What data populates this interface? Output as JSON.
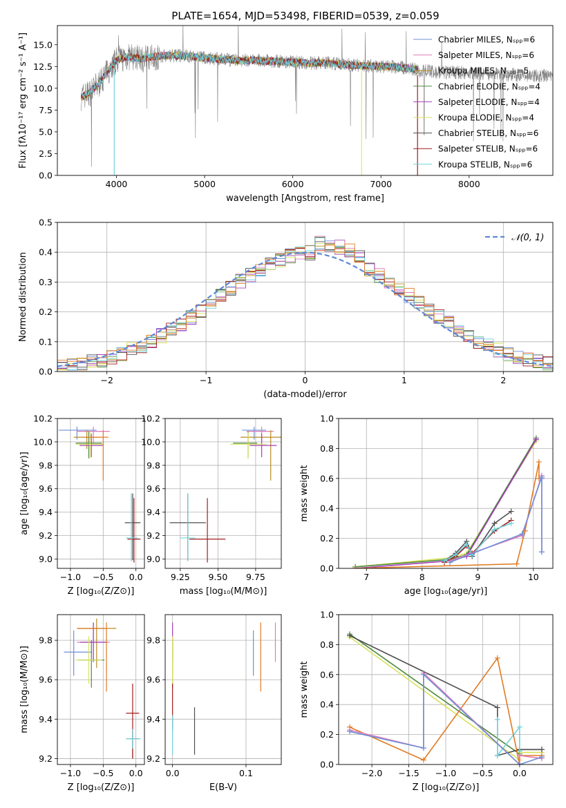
{
  "figure": {
    "title": "PLATE=1654, MJD=53498, FIBERID=0539, z=0.059"
  },
  "colors": {
    "Chabrier MILES": "#6e8fd6",
    "Salpeter MILES": "#e07bb8",
    "Kroupa MILES": "#b78a22",
    "Chabrier ELODIE": "#4e8a3e",
    "Salpeter ELODIE": "#a43db8",
    "Kroupa ELODIE": "#d8e05a",
    "Chabrier STELIB": "#4d4d4d",
    "Salpeter STELIB": "#a31a1a",
    "Kroupa STELIB": "#6fd3dd",
    "extra": "#e07a22"
  },
  "chart_data": [
    {
      "id": "spectrum",
      "type": "line",
      "title": "PLATE=1654, MJD=53498, FIBERID=0539, z=0.059",
      "xlabel": "wavelength [Angstrom, rest frame]",
      "ylabel": "Flux [fλ10⁻¹⁷ erg cm⁻² s⁻¹ A⁻¹]",
      "xlim": [
        3330,
        8950
      ],
      "ylim": [
        0,
        17.2
      ],
      "xticks": [
        4000,
        5000,
        6000,
        7000,
        8000
      ],
      "yticks": [
        0.0,
        2.5,
        5.0,
        7.5,
        10.0,
        12.5,
        15.0
      ],
      "grid": false,
      "legend": "upper right",
      "legend_entries": [
        "Chabrier MILES, Nₛₚₚ=6",
        "Salpeter MILES, Nₛₚₚ=6",
        "Kroupa MILES, Nₛₚₚ=5",
        "Chabrier ELODIE, Nₛₚₚ=4",
        "Salpeter ELODIE, Nₛₚₚ=4",
        "Kroupa ELODIE, Nₛₚₚ=4",
        "Chabrier STELIB, Nₛₚₚ=6",
        "Salpeter STELIB, Nₛₚₚ=6",
        "Kroupa STELIB, Nₛₚₚ=6"
      ],
      "legend_names": [
        "Chabrier MILES",
        "Salpeter MILES",
        "Kroupa MILES",
        "Chabrier ELODIE",
        "Salpeter ELODIE",
        "Kroupa ELODIE",
        "Chabrier STELIB",
        "Salpeter STELIB",
        "Kroupa STELIB"
      ],
      "data_trend": {
        "x": [
          3600,
          3700,
          3800,
          3900,
          4000,
          4100,
          4200,
          4300,
          4400,
          4600,
          4800,
          5000,
          5200,
          5400,
          5600,
          5800,
          6000,
          6200,
          6400,
          6600,
          6800,
          7000,
          7200,
          7400
        ],
        "y": [
          9.0,
          9.5,
          10.5,
          12.0,
          13.2,
          13.6,
          13.5,
          13.4,
          13.6,
          13.8,
          13.7,
          13.5,
          13.3,
          13.2,
          13.2,
          13.1,
          13.0,
          12.9,
          12.9,
          12.7,
          12.6,
          12.5,
          12.4,
          12.2
        ]
      },
      "model_visible_range": [
        3600,
        7420
      ],
      "data_visible_range": [
        3600,
        8950
      ]
    },
    {
      "id": "residuals",
      "type": "histogram",
      "xlabel": "(data-model)/error",
      "ylabel": "Normed distribution",
      "xlim": [
        -2.5,
        2.5
      ],
      "ylim": [
        0,
        0.5
      ],
      "xticks": [
        -2,
        -1,
        0,
        1,
        2
      ],
      "yticks": [
        0.0,
        0.1,
        0.2,
        0.3,
        0.4,
        0.5
      ],
      "grid": true,
      "legend": "upper right",
      "reference_curve": {
        "name": "𝒩(0, 1)",
        "mean": 0,
        "sigma": 1,
        "style": "dashed"
      },
      "bin_edges_start": -2.5,
      "bin_width": 0.1
    },
    {
      "id": "age_vs_Z",
      "type": "errorbar",
      "xlabel": "Z [log₁₀(Z/Z⊙)]",
      "ylabel": "age  [log₁₀(age/yr)]",
      "xlim": [
        -1.2,
        0.13
      ],
      "ylim": [
        8.92,
        10.2
      ],
      "xticks": [
        -1.0,
        -0.5,
        0.0
      ],
      "yticks": [
        9.0,
        9.2,
        9.4,
        9.6,
        9.8,
        10.0,
        10.2
      ],
      "grid": true,
      "points": [
        {
          "series": "Chabrier MILES",
          "x": -0.9,
          "y": 10.1,
          "xerr": [
            0.28,
            0.3
          ],
          "yerr": [
            0.08,
            0.03
          ]
        },
        {
          "series": "Salpeter MILES",
          "x": -0.65,
          "y": 10.09,
          "xerr": [
            0.25,
            0.25
          ],
          "yerr": [
            0.1,
            0.04
          ]
        },
        {
          "series": "Kroupa MILES",
          "x": -0.75,
          "y": 10.04,
          "xerr": [
            0.2,
            0.2
          ],
          "yerr": [
            0.1,
            0.06
          ]
        },
        {
          "series": "Chabrier ELODIE",
          "x": -0.72,
          "y": 9.99,
          "xerr": [
            0.2,
            0.2
          ],
          "yerr": [
            0.13,
            0.1
          ]
        },
        {
          "series": "Salpeter ELODIE",
          "x": -0.68,
          "y": 9.97,
          "xerr": [
            0.18,
            0.18
          ],
          "yerr": [
            0.1,
            0.1
          ]
        },
        {
          "series": "Kroupa ELODIE",
          "x": -0.7,
          "y": 9.98,
          "xerr": [
            0.22,
            0.22
          ],
          "yerr": [
            0.12,
            0.1
          ]
        },
        {
          "series": "extra",
          "x": -0.5,
          "y": 10.04,
          "xerr": [
            0.3,
            0.08
          ],
          "yerr": [
            0.37,
            0.06
          ]
        },
        {
          "series": "Chabrier STELIB",
          "x": -0.05,
          "y": 9.31,
          "xerr": [
            0.12,
            0.12
          ],
          "yerr": [
            0.32,
            0.25
          ]
        },
        {
          "series": "Salpeter STELIB",
          "x": -0.03,
          "y": 9.17,
          "xerr": [
            0.1,
            0.1
          ],
          "yerr": [
            0.2,
            0.35
          ]
        },
        {
          "series": "Kroupa STELIB",
          "x": -0.07,
          "y": 9.18,
          "xerr": [
            0.08,
            0.1
          ],
          "yerr": [
            0.2,
            0.38
          ]
        }
      ]
    },
    {
      "id": "age_vs_mass",
      "type": "errorbar",
      "xlabel": "mass [log₁₀(M/M⊙)]",
      "ylabel": "",
      "xlim": [
        9.15,
        9.92
      ],
      "ylim": [
        8.92,
        10.2
      ],
      "xticks": [
        9.25,
        9.5,
        9.75
      ],
      "xticklabels": [
        "9.25",
        "9.50",
        "9.75"
      ],
      "yticks": [
        9.0,
        9.2,
        9.4,
        9.6,
        9.8,
        10.0,
        10.2
      ],
      "grid": true,
      "points": [
        {
          "series": "Chabrier MILES",
          "x": 9.74,
          "y": 10.1,
          "xerr": [
            0.08,
            0.08
          ],
          "yerr": [
            0.08,
            0.03
          ]
        },
        {
          "series": "Salpeter MILES",
          "x": 9.79,
          "y": 10.09,
          "xerr": [
            0.1,
            0.08
          ],
          "yerr": [
            0.1,
            0.04
          ]
        },
        {
          "series": "Kroupa MILES",
          "x": 9.85,
          "y": 10.04,
          "xerr": [
            0.2,
            0.08
          ],
          "yerr": [
            0.37,
            0.06
          ]
        },
        {
          "series": "Chabrier ELODIE",
          "x": 9.7,
          "y": 9.99,
          "xerr": [
            0.1,
            0.06
          ],
          "yerr": [
            0.13,
            0.1
          ]
        },
        {
          "series": "Salpeter ELODIE",
          "x": 9.79,
          "y": 9.97,
          "xerr": [
            0.08,
            0.1
          ],
          "yerr": [
            0.1,
            0.1
          ]
        },
        {
          "series": "Kroupa ELODIE",
          "x": 9.7,
          "y": 9.98,
          "xerr": [
            0.12,
            0.12
          ],
          "yerr": [
            0.12,
            0.1
          ]
        },
        {
          "series": "Chabrier STELIB",
          "x": 9.3,
          "y": 9.31,
          "xerr": [
            0.12,
            0.12
          ],
          "yerr": [
            0.32,
            0.25
          ]
        },
        {
          "series": "Salpeter STELIB",
          "x": 9.43,
          "y": 9.17,
          "xerr": [
            0.12,
            0.12
          ],
          "yerr": [
            0.2,
            0.35
          ]
        },
        {
          "series": "Kroupa STELIB",
          "x": 9.3,
          "y": 9.18,
          "xerr": [
            0.05,
            0.05
          ],
          "yerr": [
            0.2,
            0.38
          ]
        }
      ]
    },
    {
      "id": "weight_vs_age",
      "type": "line",
      "xlabel": "age  [log₁₀(age/yr)]",
      "ylabel": "mass weight",
      "xlim": [
        6.5,
        10.35
      ],
      "ylim": [
        0,
        1.0
      ],
      "xticks": [
        7,
        8,
        9,
        10
      ],
      "yticks": [
        0.0,
        0.2,
        0.4,
        0.6,
        0.8,
        1.0
      ],
      "grid": true,
      "series": [
        {
          "name": "Kroupa ELODIE",
          "x": [
            6.8,
            8.5,
            8.8,
            10.05
          ],
          "y": [
            0.01,
            0.07,
            0.1,
            0.85
          ]
        },
        {
          "name": "Chabrier ELODIE",
          "x": [
            6.8,
            8.5,
            8.8,
            10.05
          ],
          "y": [
            0.01,
            0.06,
            0.09,
            0.87
          ]
        },
        {
          "name": "Salpeter ELODIE",
          "x": [
            6.8,
            8.5,
            8.8,
            10.05
          ],
          "y": [
            0.0,
            0.05,
            0.08,
            0.86
          ]
        },
        {
          "name": "Chabrier STELIB",
          "x": [
            8.4,
            8.6,
            8.8,
            8.9,
            9.3,
            9.6
          ],
          "y": [
            0.05,
            0.1,
            0.18,
            0.08,
            0.3,
            0.38
          ]
        },
        {
          "name": "Salpeter STELIB",
          "x": [
            8.4,
            8.6,
            8.8,
            8.9,
            9.3,
            9.6
          ],
          "y": [
            0.04,
            0.08,
            0.15,
            0.1,
            0.25,
            0.32
          ]
        },
        {
          "name": "Kroupa STELIB",
          "x": [
            8.4,
            8.6,
            8.8,
            8.9,
            9.3,
            9.6
          ],
          "y": [
            0.05,
            0.09,
            0.16,
            0.09,
            0.26,
            0.3
          ]
        },
        {
          "name": "extra",
          "x": [
            6.8,
            9.7,
            9.85,
            10.1,
            10.1
          ],
          "y": [
            0.0,
            0.03,
            0.25,
            0.71,
            0.6
          ]
        },
        {
          "name": "Salpeter MILES",
          "x": [
            8.5,
            9.8,
            10.15,
            10.15,
            10.15
          ],
          "y": [
            0.05,
            0.22,
            0.62,
            0.11,
            0.6
          ]
        },
        {
          "name": "Chabrier MILES",
          "x": [
            8.5,
            9.8,
            10.15,
            10.15,
            10.15
          ],
          "y": [
            0.04,
            0.23,
            0.61,
            0.11,
            0.6
          ]
        }
      ]
    },
    {
      "id": "mass_vs_Z",
      "type": "errorbar",
      "xlabel": "Z [log₁₀(Z/Z⊙)]",
      "ylabel": "mass [log₁₀(M/M⊙)]",
      "xlim": [
        -1.2,
        0.13
      ],
      "ylim": [
        9.17,
        9.93
      ],
      "xticks": [
        -1.0,
        -0.5,
        0.0
      ],
      "yticks": [
        9.2,
        9.4,
        9.6,
        9.8
      ],
      "grid": true,
      "points": [
        {
          "series": "Chabrier MILES",
          "x": -0.95,
          "y": 9.74,
          "xerr": [
            0.15,
            0.28
          ],
          "yerr": [
            0.12,
            0.11
          ]
        },
        {
          "series": "Salpeter MILES",
          "x": -0.65,
          "y": 9.79,
          "xerr": [
            0.25,
            0.25
          ],
          "yerr": [
            0.1,
            0.1
          ]
        },
        {
          "series": "Kroupa MILES",
          "x": -0.6,
          "y": 9.86,
          "xerr": [
            0.3,
            0.3
          ],
          "yerr": [
            0.2,
            0.05
          ]
        },
        {
          "series": "Chabrier ELODIE",
          "x": -0.68,
          "y": 9.7,
          "xerr": [
            0.2,
            0.2
          ],
          "yerr": [
            0.14,
            0.1
          ]
        },
        {
          "series": "Salpeter ELODIE",
          "x": -0.65,
          "y": 9.79,
          "xerr": [
            0.2,
            0.2
          ],
          "yerr": [
            0.1,
            0.1
          ]
        },
        {
          "series": "Kroupa ELODIE",
          "x": -0.72,
          "y": 9.7,
          "xerr": [
            0.2,
            0.2
          ],
          "yerr": [
            0.12,
            0.12
          ]
        },
        {
          "series": "extra",
          "x": -0.45,
          "y": 9.86,
          "xerr": [
            0.45,
            0.0
          ],
          "yerr": [
            0.32,
            0.03
          ]
        },
        {
          "series": "Chabrier STELIB",
          "x": -0.05,
          "y": 9.3,
          "xerr": [
            0.1,
            0.1
          ],
          "yerr": [
            0.1,
            0.05
          ]
        },
        {
          "series": "Salpeter STELIB",
          "x": -0.05,
          "y": 9.43,
          "xerr": [
            0.1,
            0.1
          ],
          "yerr": [
            0.23,
            0.15
          ]
        },
        {
          "series": "Kroupa STELIB",
          "x": -0.05,
          "y": 9.3,
          "xerr": [
            0.1,
            0.12
          ],
          "yerr": [
            0.05,
            0.05
          ]
        }
      ]
    },
    {
      "id": "mass_vs_EBV",
      "type": "errorbar",
      "xlabel": "E(B-V)",
      "ylabel": "",
      "xlim": [
        -0.01,
        0.148
      ],
      "ylim": [
        9.17,
        9.93
      ],
      "xticks": [
        0.0,
        0.1
      ],
      "xticklabels": [
        "0.0",
        "0.1"
      ],
      "yticks": [
        9.2,
        9.4,
        9.6,
        9.8
      ],
      "grid": true,
      "points": [
        {
          "series": "Chabrier MILES",
          "x": 0.11,
          "y": 9.74,
          "xerr": [
            0,
            0
          ],
          "yerr": [
            0.12,
            0.11
          ]
        },
        {
          "series": "Salpeter MILES",
          "x": 0.14,
          "y": 9.79,
          "xerr": [
            0,
            0
          ],
          "yerr": [
            0.1,
            0.1
          ]
        },
        {
          "series": "extra",
          "x": 0.12,
          "y": 9.72,
          "xerr": [
            0,
            0
          ],
          "yerr": [
            0.18,
            0.17
          ]
        },
        {
          "series": "Chabrier ELODIE",
          "x": 0.0,
          "y": 9.7,
          "xerr": [
            0,
            0
          ],
          "yerr": [
            0.14,
            0.1
          ]
        },
        {
          "series": "Salpeter ELODIE",
          "x": 0.0,
          "y": 9.79,
          "xerr": [
            0,
            0
          ],
          "yerr": [
            0.1,
            0.1
          ]
        },
        {
          "series": "Kroupa ELODIE",
          "x": 0.0,
          "y": 9.7,
          "xerr": [
            0,
            0
          ],
          "yerr": [
            0.12,
            0.12
          ]
        },
        {
          "series": "Chabrier STELIB",
          "x": 0.03,
          "y": 9.34,
          "xerr": [
            0,
            0
          ],
          "yerr": [
            0.12,
            0.12
          ]
        },
        {
          "series": "Salpeter STELIB",
          "x": 0.0,
          "y": 9.43,
          "xerr": [
            0,
            0
          ],
          "yerr": [
            0.09,
            0.15
          ]
        },
        {
          "series": "Kroupa STELIB",
          "x": 0.0,
          "y": 9.3,
          "xerr": [
            0,
            0
          ],
          "yerr": [
            0.08,
            0.12
          ]
        }
      ]
    },
    {
      "id": "weight_vs_Z",
      "type": "line",
      "xlabel": "Z [log₁₀(Z/Z⊙)]",
      "ylabel": "mass weight",
      "xlim": [
        -2.45,
        0.45
      ],
      "ylim": [
        0,
        1.0
      ],
      "xticks": [
        -2.0,
        -1.5,
        -1.0,
        -0.5,
        0.0
      ],
      "yticks": [
        0.0,
        0.2,
        0.4,
        0.6,
        0.8,
        1.0
      ],
      "grid": true,
      "series": [
        {
          "name": "Chabrier ELODIE",
          "x": [
            -2.3,
            0.0,
            0.0,
            0.3
          ],
          "y": [
            0.87,
            0.07,
            0.1,
            0.1
          ]
        },
        {
          "name": "Kroupa ELODIE",
          "x": [
            -2.3,
            0.0,
            0.0,
            0.3
          ],
          "y": [
            0.85,
            0.03,
            0.08,
            0.08
          ]
        },
        {
          "name": "Chabrier STELIB",
          "x": [
            -2.3,
            -0.3,
            -0.3,
            0.0,
            0.0,
            0.3
          ],
          "y": [
            0.86,
            0.38,
            0.06,
            0.1,
            0.1,
            0.1
          ]
        },
        {
          "name": "Kroupa STELIB",
          "x": [
            -0.3,
            -0.3,
            0.0,
            0.0
          ],
          "y": [
            0.3,
            0.06,
            0.25,
            0.09
          ]
        },
        {
          "name": "extra",
          "x": [
            -2.3,
            -1.3,
            -0.3,
            0.0,
            0.0,
            0.3
          ],
          "y": [
            0.25,
            0.03,
            0.71,
            0.0,
            0.06,
            0.06
          ]
        },
        {
          "name": "Salpeter MILES",
          "x": [
            -2.3,
            -1.3,
            -1.3,
            0.0,
            0.0,
            0.3
          ],
          "y": [
            0.23,
            0.11,
            0.61,
            0.0,
            0.06,
            0.04
          ]
        },
        {
          "name": "Chabrier MILES",
          "x": [
            -2.3,
            -1.3,
            -1.3,
            0.0,
            0.3
          ],
          "y": [
            0.22,
            0.11,
            0.6,
            0.0,
            0.05
          ]
        }
      ]
    }
  ]
}
